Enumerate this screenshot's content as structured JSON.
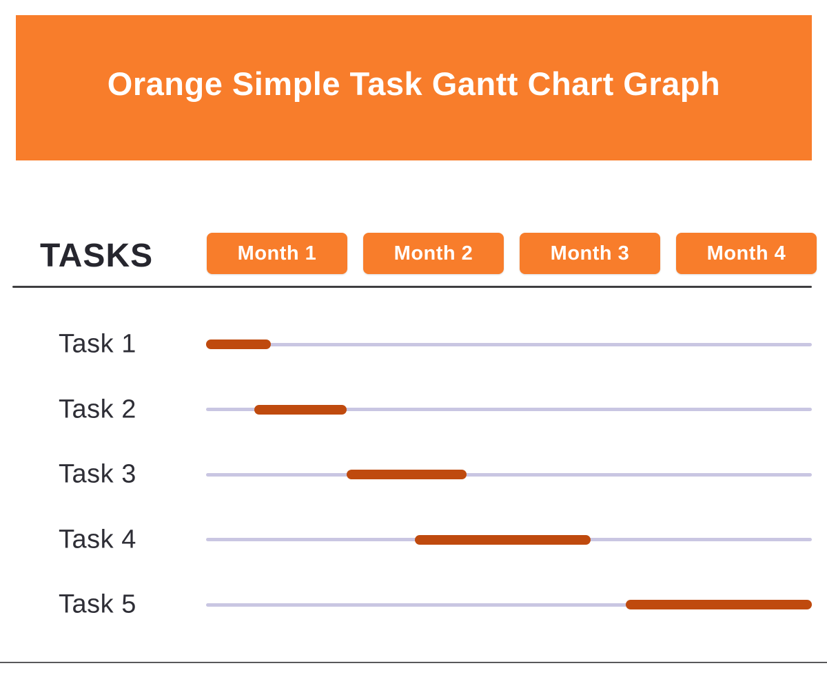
{
  "colors": {
    "banner_orange": "#F87D2B",
    "month_box_orange": "#F87D2B",
    "bar_burnt_orange": "#BF4A0E",
    "track_lavender": "#C9C6E2",
    "heading_dark": "#26262E",
    "label_dark": "#2E2E36"
  },
  "chart_data": {
    "type": "gantt",
    "title": "Orange Simple Task Gantt Chart Graph",
    "tasks_header": "TASKS",
    "columns": [
      "Month 1",
      "Month 2",
      "Month 3",
      "Month 4"
    ],
    "x_range_months": [
      0,
      4
    ],
    "grid": false,
    "tasks": [
      {
        "label": "Task 1",
        "start_month": 0.0,
        "end_month": 0.43
      },
      {
        "label": "Task 2",
        "start_month": 0.32,
        "end_month": 0.93
      },
      {
        "label": "Task 3",
        "start_month": 0.93,
        "end_month": 1.72
      },
      {
        "label": "Task 4",
        "start_month": 1.38,
        "end_month": 2.54
      },
      {
        "label": "Task 5",
        "start_month": 2.77,
        "end_month": 4.0
      }
    ]
  }
}
